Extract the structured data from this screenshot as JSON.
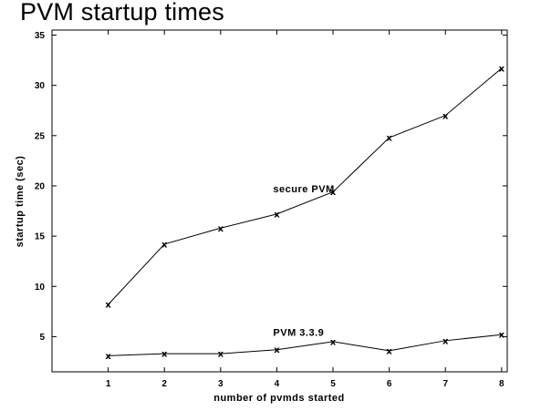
{
  "chart_data": {
    "type": "line",
    "title": "PVM startup times",
    "xlabel": "number of pvmds started",
    "ylabel": "startup time (sec)",
    "x": [
      1,
      2,
      3,
      4,
      5,
      6,
      7,
      8
    ],
    "x_ticks": [
      "1",
      "2",
      "3",
      "4",
      "5",
      "6",
      "7",
      "8"
    ],
    "y_ticks": [
      "5",
      "10",
      "15",
      "20",
      "25",
      "30",
      "35"
    ],
    "xlim": [
      0,
      8.1
    ],
    "ylim": [
      1.5,
      35.5
    ],
    "grid": false,
    "legend": "none",
    "marker": "x",
    "series": [
      {
        "name": "secure PVM",
        "values": [
          8.2,
          14.2,
          15.8,
          17.2,
          19.4,
          24.8,
          27.0,
          31.7
        ]
      },
      {
        "name": "PVM 3.3.9",
        "values": [
          3.1,
          3.3,
          3.3,
          3.7,
          4.5,
          3.6,
          4.6,
          5.2
        ]
      }
    ]
  }
}
